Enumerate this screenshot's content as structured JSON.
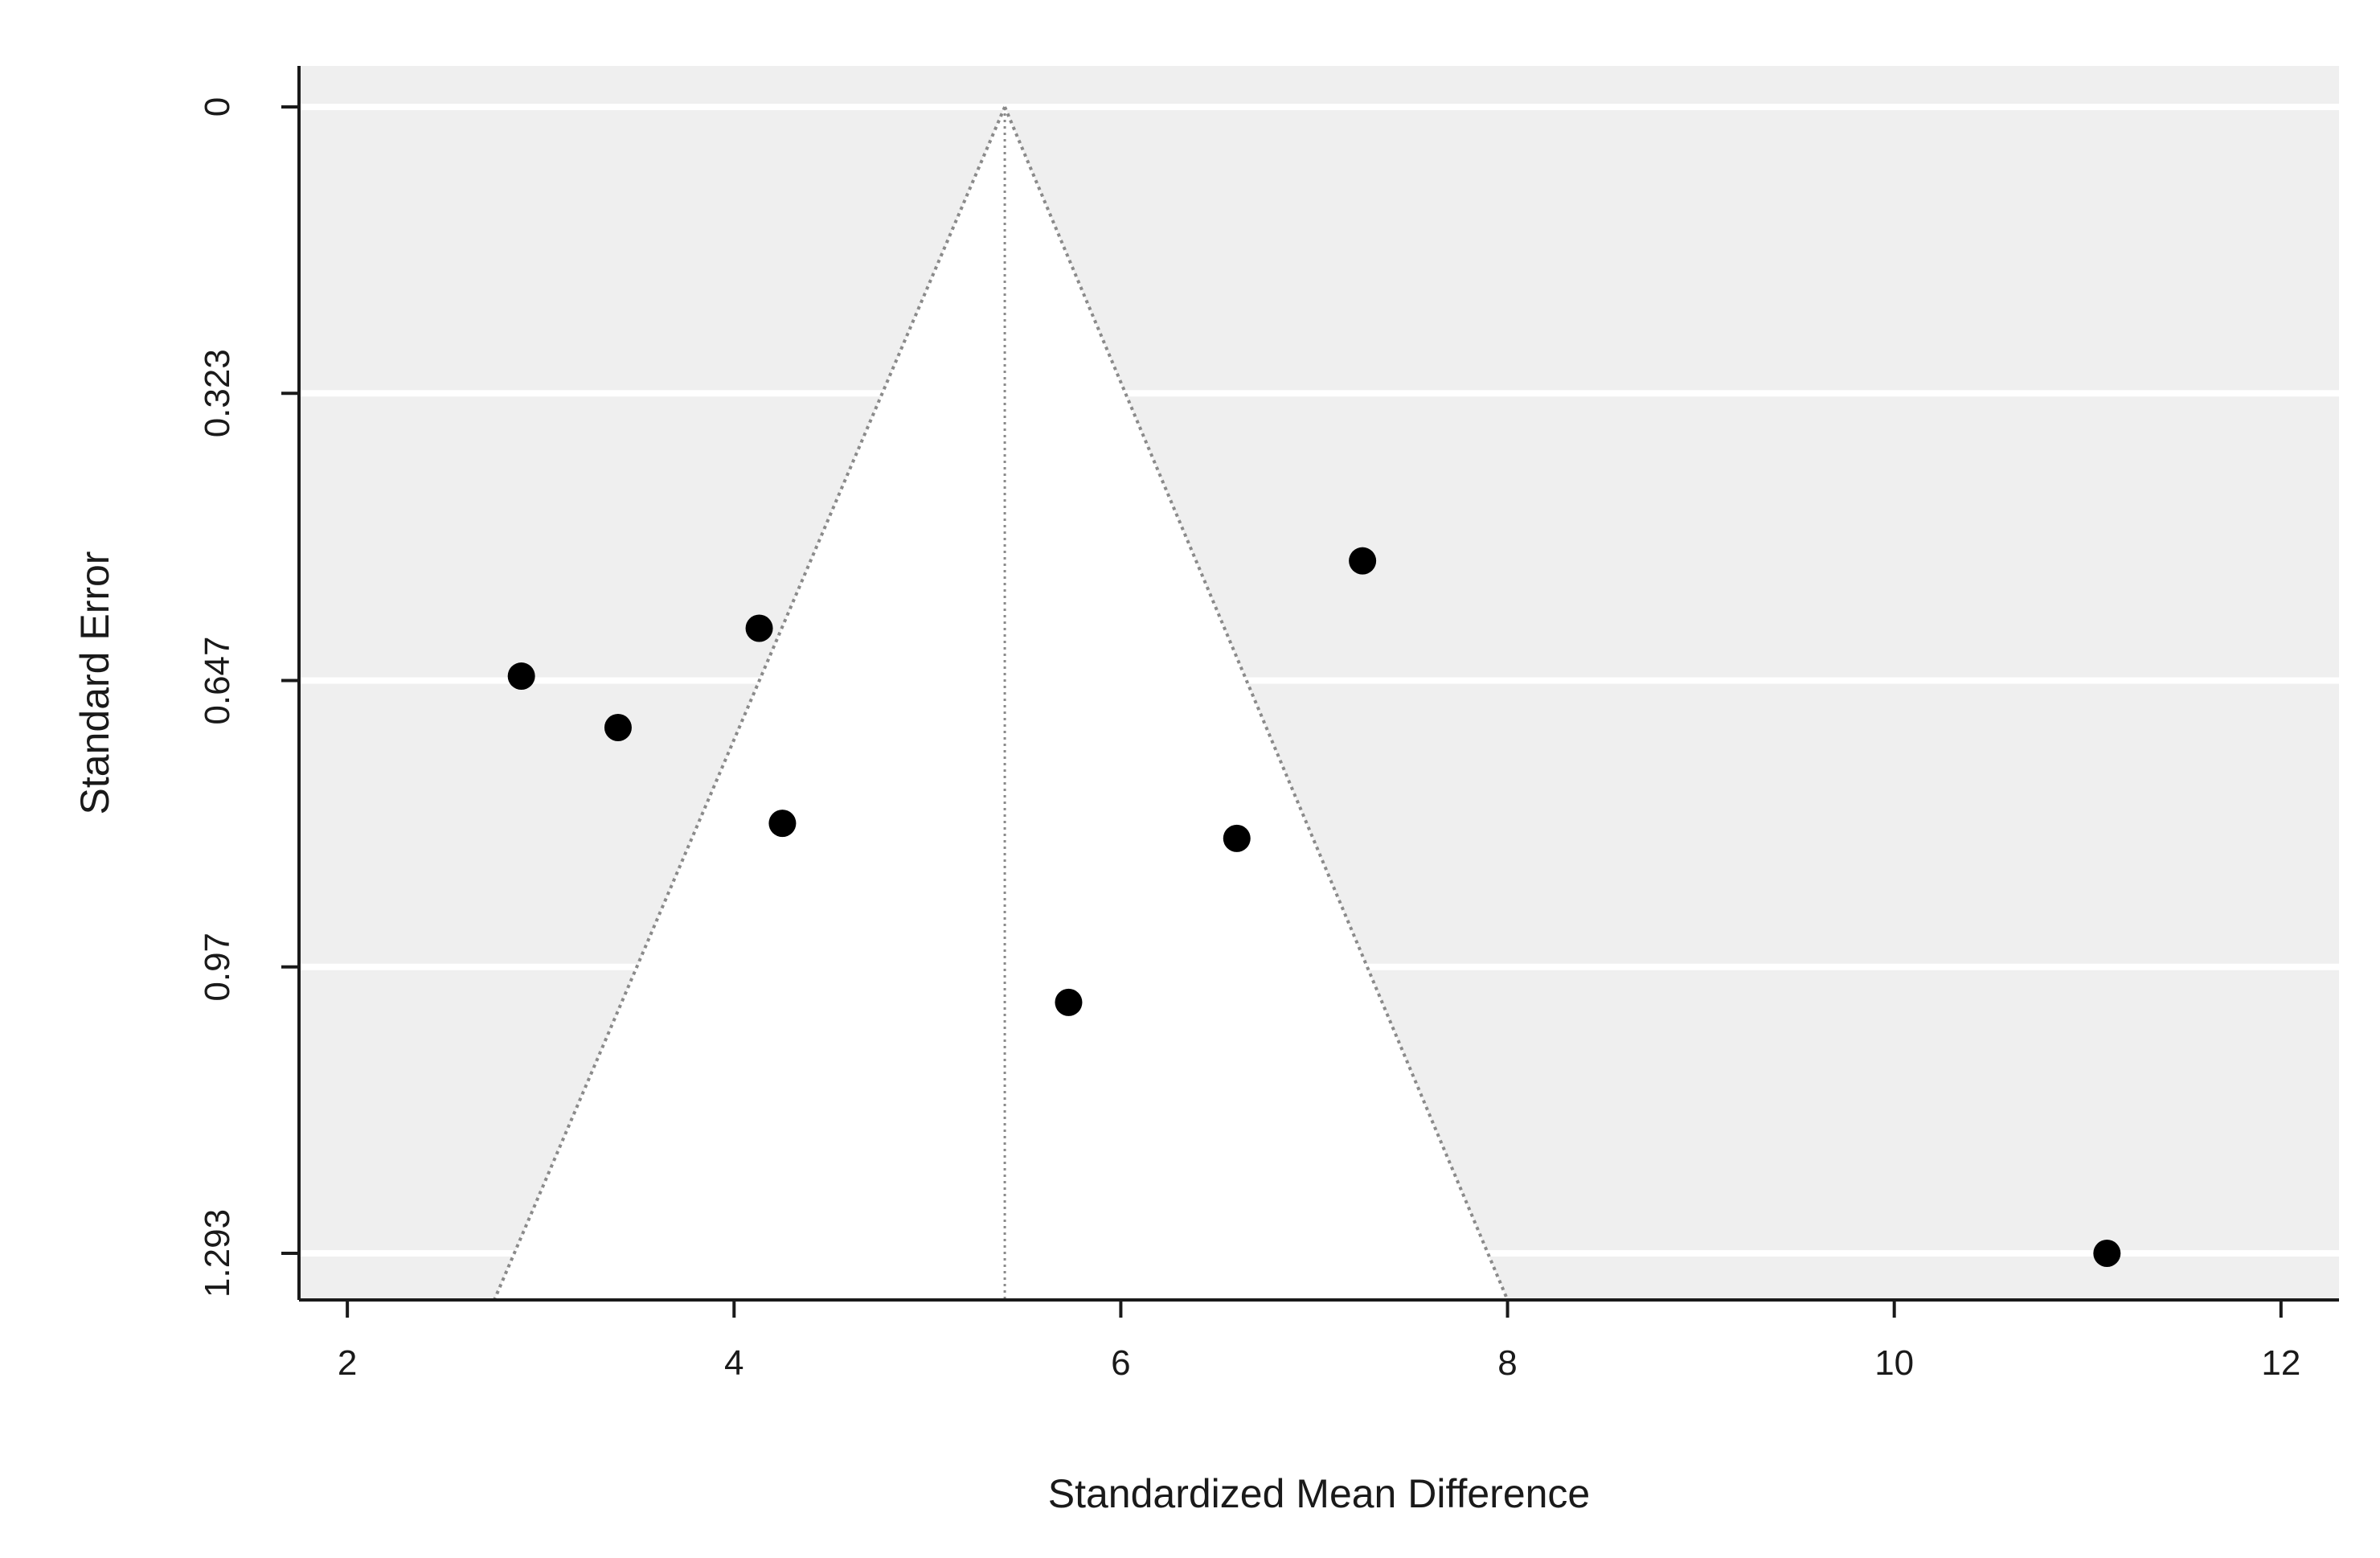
{
  "chart_data": {
    "type": "scatter",
    "plot_subtype": "funnel plot",
    "title": "",
    "xlabel": "Standardized Mean Difference",
    "ylabel": "Standard Error",
    "xlim": [
      1.75,
      12.3
    ],
    "ylim": [
      0,
      1.35
    ],
    "y_reversed": true,
    "x_ticks": [
      2,
      4,
      6,
      8,
      10,
      12
    ],
    "x_tick_labels": [
      "2",
      "4",
      "6",
      "8",
      "10",
      "12"
    ],
    "y_ticks": [
      0,
      0.323,
      0.647,
      0.97,
      1.293
    ],
    "y_tick_labels": [
      "0",
      "0.323",
      "0.647",
      "0.97",
      "1.293"
    ],
    "grid": "horizontal",
    "summary_effect": 5.4,
    "funnel_base_x": [
      2.76,
      8.0
    ],
    "points": [
      {
        "x": 2.9,
        "y": 0.642
      },
      {
        "x": 3.4,
        "y": 0.7
      },
      {
        "x": 4.13,
        "y": 0.588
      },
      {
        "x": 4.25,
        "y": 0.808
      },
      {
        "x": 5.73,
        "y": 1.01
      },
      {
        "x": 6.6,
        "y": 0.825
      },
      {
        "x": 7.25,
        "y": 0.512
      },
      {
        "x": 11.1,
        "y": 1.293
      }
    ],
    "colors": {
      "panel_background": "#efefef",
      "funnel_fill": "#ffffff",
      "gridline": "#ffffff",
      "funnel_line": "#8a8a8a",
      "point": "#000000",
      "axis": "#1a1a1a"
    }
  }
}
